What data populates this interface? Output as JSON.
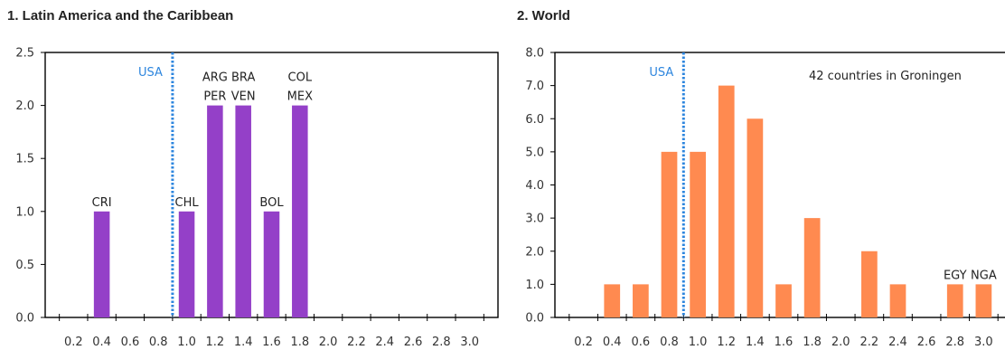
{
  "chart_data": [
    {
      "type": "bar",
      "title": "1.  Latin America and the Caribbean",
      "x": [
        0.2,
        0.4,
        0.6,
        0.8,
        1.0,
        1.2,
        1.4,
        1.6,
        1.8,
        2.0,
        2.2,
        2.4,
        2.6,
        2.8,
        3.0
      ],
      "x_tick_labels": [
        "0.2",
        "0.4",
        "0.6",
        "0.8",
        "1.0",
        "1.2",
        "1.4",
        "1.6",
        "1.8",
        "2.0",
        "2.2",
        "2.4",
        "2.6",
        "2.8",
        "3.0"
      ],
      "values": [
        0,
        1,
        0,
        0,
        1,
        2,
        2,
        1,
        2,
        0,
        0,
        0,
        0,
        0,
        0
      ],
      "ylim": [
        0,
        2.5
      ],
      "y_ticks": [
        0,
        0.5,
        1.0,
        1.5,
        2.0,
        2.5
      ],
      "y_tick_labels": [
        "0.0",
        "0.5",
        "1.0",
        "1.5",
        "2.0",
        "2.5"
      ],
      "bar_color": "#9440C8",
      "reference_line": {
        "label": "USA",
        "x": 0.9,
        "color": "#2E86DE"
      },
      "bar_labels": [
        {
          "x": 0.4,
          "lines": [
            "CRI"
          ]
        },
        {
          "x": 1.0,
          "lines": [
            "CHL"
          ]
        },
        {
          "x": 1.2,
          "lines": [
            "ARG",
            "PER"
          ]
        },
        {
          "x": 1.4,
          "lines": [
            "BRA",
            "VEN"
          ]
        },
        {
          "x": 1.6,
          "lines": [
            "BOL"
          ]
        },
        {
          "x": 1.8,
          "lines": [
            "COL",
            "MEX"
          ]
        }
      ]
    },
    {
      "type": "bar",
      "title": "2.  World",
      "x": [
        0.2,
        0.4,
        0.6,
        0.8,
        1.0,
        1.2,
        1.4,
        1.6,
        1.8,
        2.0,
        2.2,
        2.4,
        2.6,
        2.8,
        3.0
      ],
      "x_tick_labels": [
        "0.2",
        "0.4",
        "0.6",
        "0.8",
        "1.0",
        "1.2",
        "1.4",
        "1.6",
        "1.8",
        "2.0",
        "2.2",
        "2.4",
        "2.6",
        "2.8",
        "3.0"
      ],
      "values": [
        0,
        1,
        1,
        5,
        5,
        7,
        6,
        1,
        3,
        0,
        2,
        1,
        0,
        1,
        1
      ],
      "ylim": [
        0,
        8
      ],
      "y_ticks": [
        0,
        1,
        2,
        3,
        4,
        5,
        6,
        7,
        8
      ],
      "y_tick_labels": [
        "0.0",
        "1.0",
        "2.0",
        "3.0",
        "4.0",
        "5.0",
        "6.0",
        "7.0",
        "8.0"
      ],
      "bar_color": "#FF8A50",
      "reference_line": {
        "label": "USA",
        "x": 0.9,
        "color": "#2E86DE"
      },
      "annotation": "42 countries  in Groningen",
      "bar_labels": [
        {
          "x": 2.8,
          "lines": [
            "EGY"
          ]
        },
        {
          "x": 3.0,
          "lines": [
            "NGA"
          ]
        }
      ]
    }
  ]
}
